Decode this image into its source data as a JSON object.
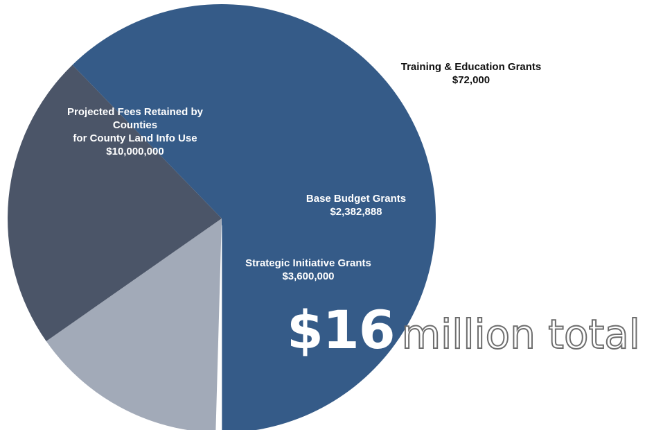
{
  "chart_data": {
    "type": "pie",
    "currency": "$",
    "slices": [
      {
        "name": "Projected Fees Retained by Counties for County Land Info Use",
        "label_lines": [
          "Projected Fees Retained by",
          "Counties",
          "for County Land Info Use"
        ],
        "value": 10000000,
        "value_label": "$10,000,000",
        "color": "#355b88"
      },
      {
        "name": "Training & Education Grants",
        "label_lines": [
          "Training & Education Grants"
        ],
        "value": 72000,
        "value_label": "$72,000",
        "color": "#ffffff",
        "exploded": true
      },
      {
        "name": "Base Budget Grants",
        "label_lines": [
          "Base Budget Grants"
        ],
        "value": 2382888,
        "value_label": "$2,382,888",
        "color": "#a2aab8"
      },
      {
        "name": "Strategic Initiative Grants",
        "label_lines": [
          "Strategic Initiative Grants"
        ],
        "value": 3600000,
        "value_label": "$3,600,000",
        "color": "#4b5568"
      }
    ],
    "start_slice": 1,
    "direction": "clockwise",
    "legend": "none",
    "annotation": {
      "amount": "$16",
      "suffix": "million total"
    }
  }
}
